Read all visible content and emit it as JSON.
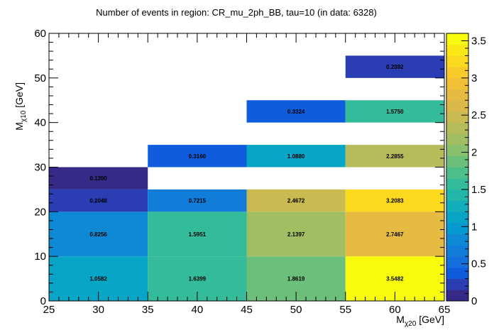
{
  "chart_data": {
    "type": "heatmap",
    "title": "Number of events in region: CR_mu_2ph_BB, tau=10 (in data: 6328)",
    "xlabel": {
      "main": "M",
      "sub": "χ20",
      "unit": " [GeV]"
    },
    "ylabel": {
      "main": "M",
      "sub": "χ10",
      "unit": " [GeV]"
    },
    "xlim": [
      25,
      65
    ],
    "ylim": [
      0,
      60
    ],
    "zlim": [
      0,
      3.6
    ],
    "x_ticks": [
      25,
      30,
      35,
      40,
      45,
      50,
      55,
      60,
      65
    ],
    "y_ticks": [
      0,
      10,
      20,
      30,
      40,
      50,
      60
    ],
    "z_ticks": [
      0,
      0.5,
      1,
      1.5,
      2,
      2.5,
      3,
      3.5
    ],
    "cells": [
      {
        "x0": 25,
        "x1": 35,
        "y0": 0,
        "y1": 10,
        "value": 1.0582,
        "label": "1.0582"
      },
      {
        "x0": 35,
        "x1": 45,
        "y0": 0,
        "y1": 10,
        "value": 1.6399,
        "label": "1.6399"
      },
      {
        "x0": 45,
        "x1": 55,
        "y0": 0,
        "y1": 10,
        "value": 1.8619,
        "label": "1.8619"
      },
      {
        "x0": 55,
        "x1": 65,
        "y0": 0,
        "y1": 10,
        "value": 3.5482,
        "label": "3.5482"
      },
      {
        "x0": 25,
        "x1": 35,
        "y0": 10,
        "y1": 20,
        "value": 0.8256,
        "label": "0.8256"
      },
      {
        "x0": 35,
        "x1": 45,
        "y0": 10,
        "y1": 20,
        "value": 1.5951,
        "label": "1.5951"
      },
      {
        "x0": 45,
        "x1": 55,
        "y0": 10,
        "y1": 20,
        "value": 2.1397,
        "label": "2.1397"
      },
      {
        "x0": 55,
        "x1": 65,
        "y0": 10,
        "y1": 20,
        "value": 2.7467,
        "label": "2.7467"
      },
      {
        "x0": 25,
        "x1": 35,
        "y0": 20,
        "y1": 25,
        "value": 0.2048,
        "label": "0.2048"
      },
      {
        "x0": 35,
        "x1": 45,
        "y0": 20,
        "y1": 25,
        "value": 0.7215,
        "label": "0.7215"
      },
      {
        "x0": 45,
        "x1": 55,
        "y0": 20,
        "y1": 25,
        "value": 2.4672,
        "label": "2.4672"
      },
      {
        "x0": 55,
        "x1": 65,
        "y0": 20,
        "y1": 25,
        "value": 3.2083,
        "label": "3.2083"
      },
      {
        "x0": 25,
        "x1": 35,
        "y0": 25,
        "y1": 30,
        "value": 0.139,
        "label": "0.1390"
      },
      {
        "x0": 35,
        "x1": 45,
        "y0": 30,
        "y1": 35,
        "value": 0.316,
        "label": "0.3160"
      },
      {
        "x0": 45,
        "x1": 55,
        "y0": 30,
        "y1": 35,
        "value": 1.088,
        "label": "1.0880"
      },
      {
        "x0": 55,
        "x1": 65,
        "y0": 30,
        "y1": 35,
        "value": 2.2855,
        "label": "2.2855"
      },
      {
        "x0": 45,
        "x1": 55,
        "y0": 40,
        "y1": 45,
        "value": 0.3324,
        "label": "0.3324"
      },
      {
        "x0": 55,
        "x1": 65,
        "y0": 40,
        "y1": 45,
        "value": 1.575,
        "label": "1.5750"
      },
      {
        "x0": 55,
        "x1": 65,
        "y0": 50,
        "y1": 55,
        "value": 0.2892,
        "label": "0.2892"
      }
    ],
    "palette": [
      "#352a87",
      "#2b3db2",
      "#0f5cdd",
      "#1370dc",
      "#127dd8",
      "#0e8ad4",
      "#079ad0",
      "#08a5c6",
      "#13aebb",
      "#22b6a9",
      "#34bc9a",
      "#4ebf8a",
      "#6cbf7b",
      "#89c06e",
      "#a2be63",
      "#b7bc5a",
      "#c9ba52",
      "#dab94a",
      "#e6bb42",
      "#f1c036",
      "#f8cb2a",
      "#fbd91e",
      "#fbe815",
      "#f9fb0e"
    ]
  }
}
